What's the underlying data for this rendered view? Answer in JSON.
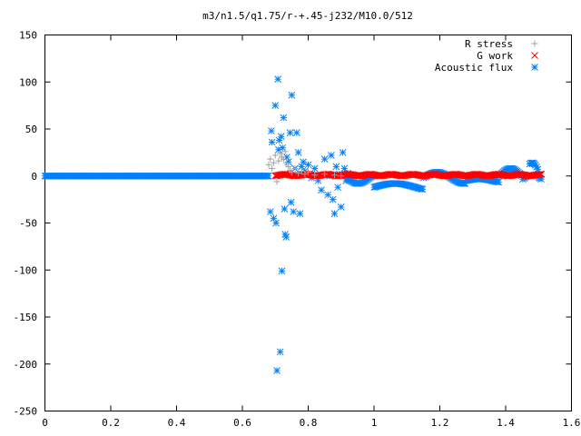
{
  "chart_data": {
    "type": "scatter",
    "title": "m3/n1.5/q1.75/r-+.45-j232/M10.0/512",
    "xlabel": "",
    "ylabel": "",
    "xlim": [
      0,
      1.6
    ],
    "ylim": [
      -250,
      150
    ],
    "x_ticks": [
      "0",
      "0.2",
      "0.4",
      "0.6",
      "0.8",
      "1",
      "1.2",
      "1.4",
      "1.6"
    ],
    "x_tick_values": [
      0,
      0.2,
      0.4,
      0.6,
      0.8,
      1.0,
      1.2,
      1.4,
      1.6
    ],
    "y_ticks": [
      "150",
      "100",
      "50",
      "0",
      "-50",
      "-100",
      "-150",
      "-200",
      "-250"
    ],
    "y_tick_values": [
      150,
      100,
      50,
      0,
      -50,
      -100,
      -150,
      -200,
      -250
    ],
    "grid": false,
    "legend_position": "top-right",
    "series": [
      {
        "name": "R stress",
        "marker": "plus",
        "color": "#a0a0a0",
        "points": [
          [
            0.68,
            12
          ],
          [
            0.685,
            18
          ],
          [
            0.69,
            8
          ],
          [
            0.695,
            14
          ],
          [
            0.7,
            22
          ],
          [
            0.705,
            -6
          ],
          [
            0.71,
            16
          ],
          [
            0.715,
            24
          ],
          [
            0.72,
            20
          ],
          [
            0.725,
            18
          ],
          [
            0.73,
            26
          ],
          [
            0.735,
            14
          ],
          [
            0.74,
            10
          ],
          [
            0.745,
            6
          ],
          [
            0.75,
            4
          ],
          [
            0.76,
            8
          ],
          [
            0.77,
            3
          ],
          [
            0.78,
            5
          ],
          [
            0.79,
            2
          ],
          [
            0.8,
            4
          ],
          [
            0.82,
            1
          ],
          [
            0.85,
            2
          ],
          [
            0.88,
            1
          ],
          [
            0.9,
            0
          ]
        ]
      },
      {
        "name": "G work",
        "marker": "cross",
        "color": "#ff0000",
        "x_start": 0.7,
        "x_end": 1.51,
        "y_value": 1
      },
      {
        "name": "Acoustic flux",
        "marker": "star",
        "color": "#0080ff",
        "line_x_start": 0,
        "line_x_end": 0.68,
        "line_y": 0,
        "scatter_points": [
          [
            0.685,
            -38
          ],
          [
            0.688,
            48
          ],
          [
            0.69,
            36
          ],
          [
            0.695,
            -45
          ],
          [
            0.7,
            75
          ],
          [
            0.702,
            -50
          ],
          [
            0.705,
            -207
          ],
          [
            0.708,
            103
          ],
          [
            0.71,
            28
          ],
          [
            0.712,
            38
          ],
          [
            0.715,
            -187
          ],
          [
            0.718,
            42
          ],
          [
            0.72,
            -101
          ],
          [
            0.722,
            30
          ],
          [
            0.725,
            62
          ],
          [
            0.728,
            -35
          ],
          [
            0.73,
            -62
          ],
          [
            0.733,
            -65
          ],
          [
            0.735,
            20
          ],
          [
            0.738,
            2
          ],
          [
            0.74,
            15
          ],
          [
            0.745,
            46
          ],
          [
            0.748,
            -28
          ],
          [
            0.75,
            86
          ],
          [
            0.755,
            -38
          ],
          [
            0.76,
            8
          ],
          [
            0.765,
            46
          ],
          [
            0.77,
            25
          ],
          [
            0.775,
            -40
          ],
          [
            0.78,
            10
          ],
          [
            0.785,
            15
          ],
          [
            0.79,
            5
          ],
          [
            0.8,
            12
          ],
          [
            0.81,
            -2
          ],
          [
            0.82,
            8
          ],
          [
            0.83,
            -5
          ],
          [
            0.84,
            -15
          ],
          [
            0.85,
            18
          ],
          [
            0.86,
            -20
          ],
          [
            0.865,
            0
          ],
          [
            0.87,
            22
          ],
          [
            0.875,
            -25
          ],
          [
            0.88,
            -40
          ],
          [
            0.885,
            10
          ],
          [
            0.89,
            -12
          ],
          [
            0.895,
            2
          ],
          [
            0.9,
            -33
          ],
          [
            0.905,
            25
          ],
          [
            0.91,
            8
          ],
          [
            0.915,
            -5
          ],
          [
            0.92,
            3
          ]
        ],
        "wave_x_start": 0.92,
        "wave_x_end": 1.51
      }
    ]
  }
}
